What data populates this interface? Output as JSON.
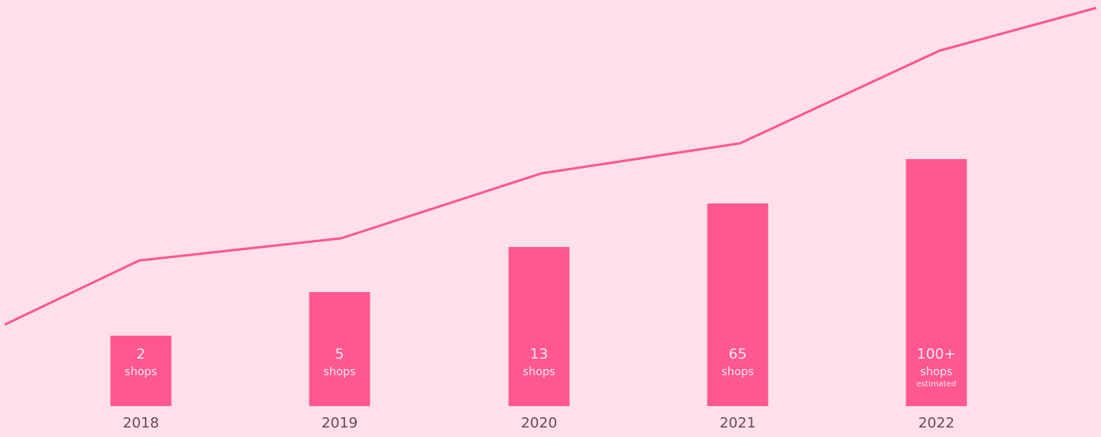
{
  "colors": {
    "background": "#fde0ea",
    "accent": "#ff5790",
    "bar_text": "#ffe7ef",
    "axis_text": "#6b4a51"
  },
  "chart_data": {
    "type": "bar",
    "categories": [
      "2018",
      "2019",
      "2020",
      "2021",
      "2022"
    ],
    "values": [
      2,
      5,
      13,
      65,
      100
    ],
    "bar_labels": [
      {
        "value": "2",
        "unit": "shops",
        "note": ""
      },
      {
        "value": "5",
        "unit": "shops",
        "note": ""
      },
      {
        "value": "13",
        "unit": "shops",
        "note": ""
      },
      {
        "value": "65",
        "unit": "shops",
        "note": ""
      },
      {
        "value": "100+",
        "unit": "shops",
        "note": "estimated"
      }
    ],
    "trend_line": {
      "description": "decorative trend line overlay",
      "points": [
        0.18,
        0.44,
        0.32,
        0.63,
        0.42,
        0.78,
        0.83,
        1.0
      ]
    },
    "title": "",
    "xlabel": "",
    "ylabel": "",
    "grid": false,
    "legend": "none"
  }
}
